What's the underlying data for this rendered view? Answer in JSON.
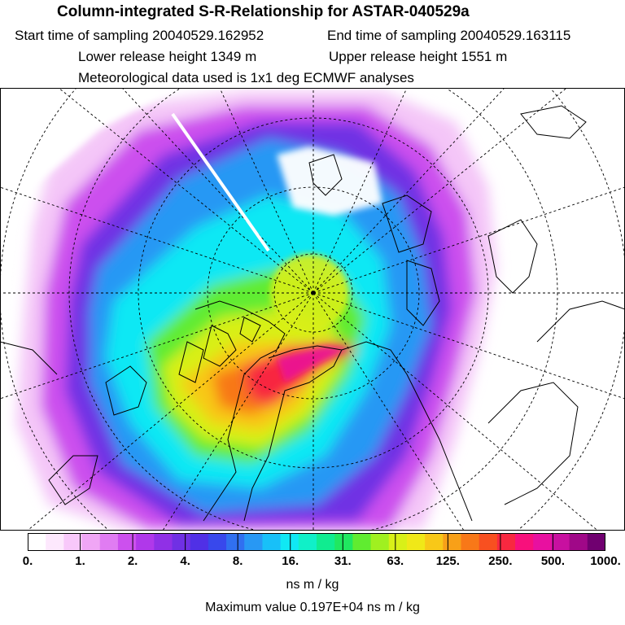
{
  "title": "Column-integrated S-R-Relationship for ASTAR-040529a",
  "info": {
    "start_label": "Start time of sampling 20040529.162952",
    "end_label": "End time of sampling 20040529.163115",
    "lower_label": "Lower release height 1349 m",
    "upper_label": "Upper release height 1551 m",
    "met_label": "Meteorological data used is 1x1 deg ECMWF analyses"
  },
  "colorbar": {
    "tick_labels": [
      "0.",
      "1.",
      "2.",
      "4.",
      "8.",
      "16.",
      "31.",
      "63.",
      "125.",
      "250.",
      "500.",
      "1000."
    ],
    "colors": [
      "#ffffff",
      "#fde8fd",
      "#f8c8fa",
      "#f0a6f5",
      "#e07cf2",
      "#cc50ee",
      "#b038ea",
      "#9030e6",
      "#7030e4",
      "#5030e6",
      "#3848ec",
      "#3070f0",
      "#2898f4",
      "#18c0f8",
      "#10e8f4",
      "#10f0c8",
      "#10ec90",
      "#20e860",
      "#60ec30",
      "#a0f020",
      "#d8f018",
      "#f0e818",
      "#f8c818",
      "#f8a018",
      "#f87818",
      "#f85020",
      "#f82840",
      "#f8107c",
      "#e810a0",
      "#c810a0",
      "#a00888",
      "#700070"
    ],
    "units": "ns m / kg"
  },
  "footer": {
    "max_value_label": "Maximum value  0.197E+04 ns m / kg"
  }
}
